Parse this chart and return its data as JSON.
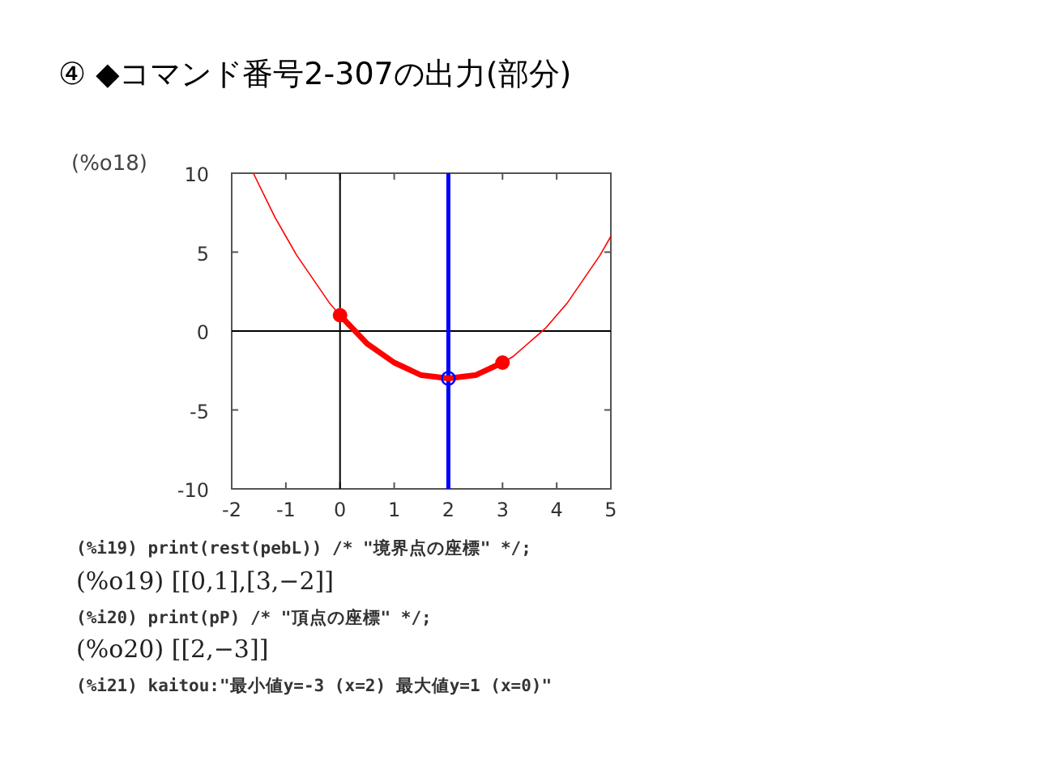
{
  "chart_data": {
    "type": "line",
    "title": "④ ◆コマンド番号2-307の出力(部分)",
    "annotations": [
      "(%o18)",
      "(%i19) print(rest(pebL)) /* \"境界点の座標\" */;",
      "(%o19) [[0,1],[3,−2]]",
      "(%i20) print(pP) /* \"頂点の座標\" */;",
      "(%o20) [[2,−3]]",
      "(%i21) kaitou:\"最小値y=-3 (x=2) 最大値y=1 (x=0)\""
    ],
    "xlim": [
      -2,
      5
    ],
    "ylim": [
      -10,
      10
    ],
    "xticks": [
      -2,
      -1,
      0,
      1,
      2,
      3,
      4,
      5
    ],
    "yticks": [
      -10,
      -5,
      0,
      5,
      10
    ],
    "grid": false,
    "ref_lines": [
      {
        "axis": "x",
        "value": 0,
        "color": "#000000"
      },
      {
        "axis": "y",
        "value": 0,
        "color": "#000000"
      },
      {
        "axis": "x",
        "value": 2,
        "color": "#0000ff"
      }
    ],
    "series": [
      {
        "color": "#ff0000",
        "x": [
          -1.6,
          -1.4,
          -1.2,
          -1,
          -0.8,
          -0.6,
          -0.4,
          -0.2,
          0,
          0.2,
          0.4,
          0.6,
          0.8,
          1,
          1.2,
          1.4,
          1.6,
          1.8,
          2,
          2.2,
          2.4,
          2.6,
          2.8,
          3,
          3.2,
          3.4,
          3.6,
          3.8,
          4,
          4.2,
          4.4,
          4.6,
          4.8,
          5
        ],
        "values": [
          10,
          8.6,
          7.2,
          6,
          4.8,
          3.8,
          2.8,
          1.8,
          1,
          0.2,
          -0.4,
          -1,
          -1.6,
          -2,
          -2.4,
          -2.6,
          -2.8,
          -3,
          -3,
          -3,
          -2.8,
          -2.6,
          -2.4,
          -2,
          -1.6,
          -1,
          -0.4,
          0.2,
          1,
          1.8,
          2.8,
          3.8,
          4.8,
          6
        ]
      },
      {
        "color": "#ff0000",
        "x": [
          0,
          0.5,
          1,
          1.5,
          2,
          2.5,
          3
        ],
        "values": [
          1,
          -0.8,
          -2,
          -2.8,
          -3,
          -2.8,
          -2
        ]
      },
      {
        "type": "scatter",
        "color": "#ff0000",
        "marker": "circle",
        "x": [
          0,
          3
        ],
        "values": [
          1,
          -2
        ]
      },
      {
        "type": "scatter",
        "color": "#0000ff",
        "marker": "circle",
        "x": [
          2
        ],
        "values": [
          -3
        ]
      }
    ]
  }
}
